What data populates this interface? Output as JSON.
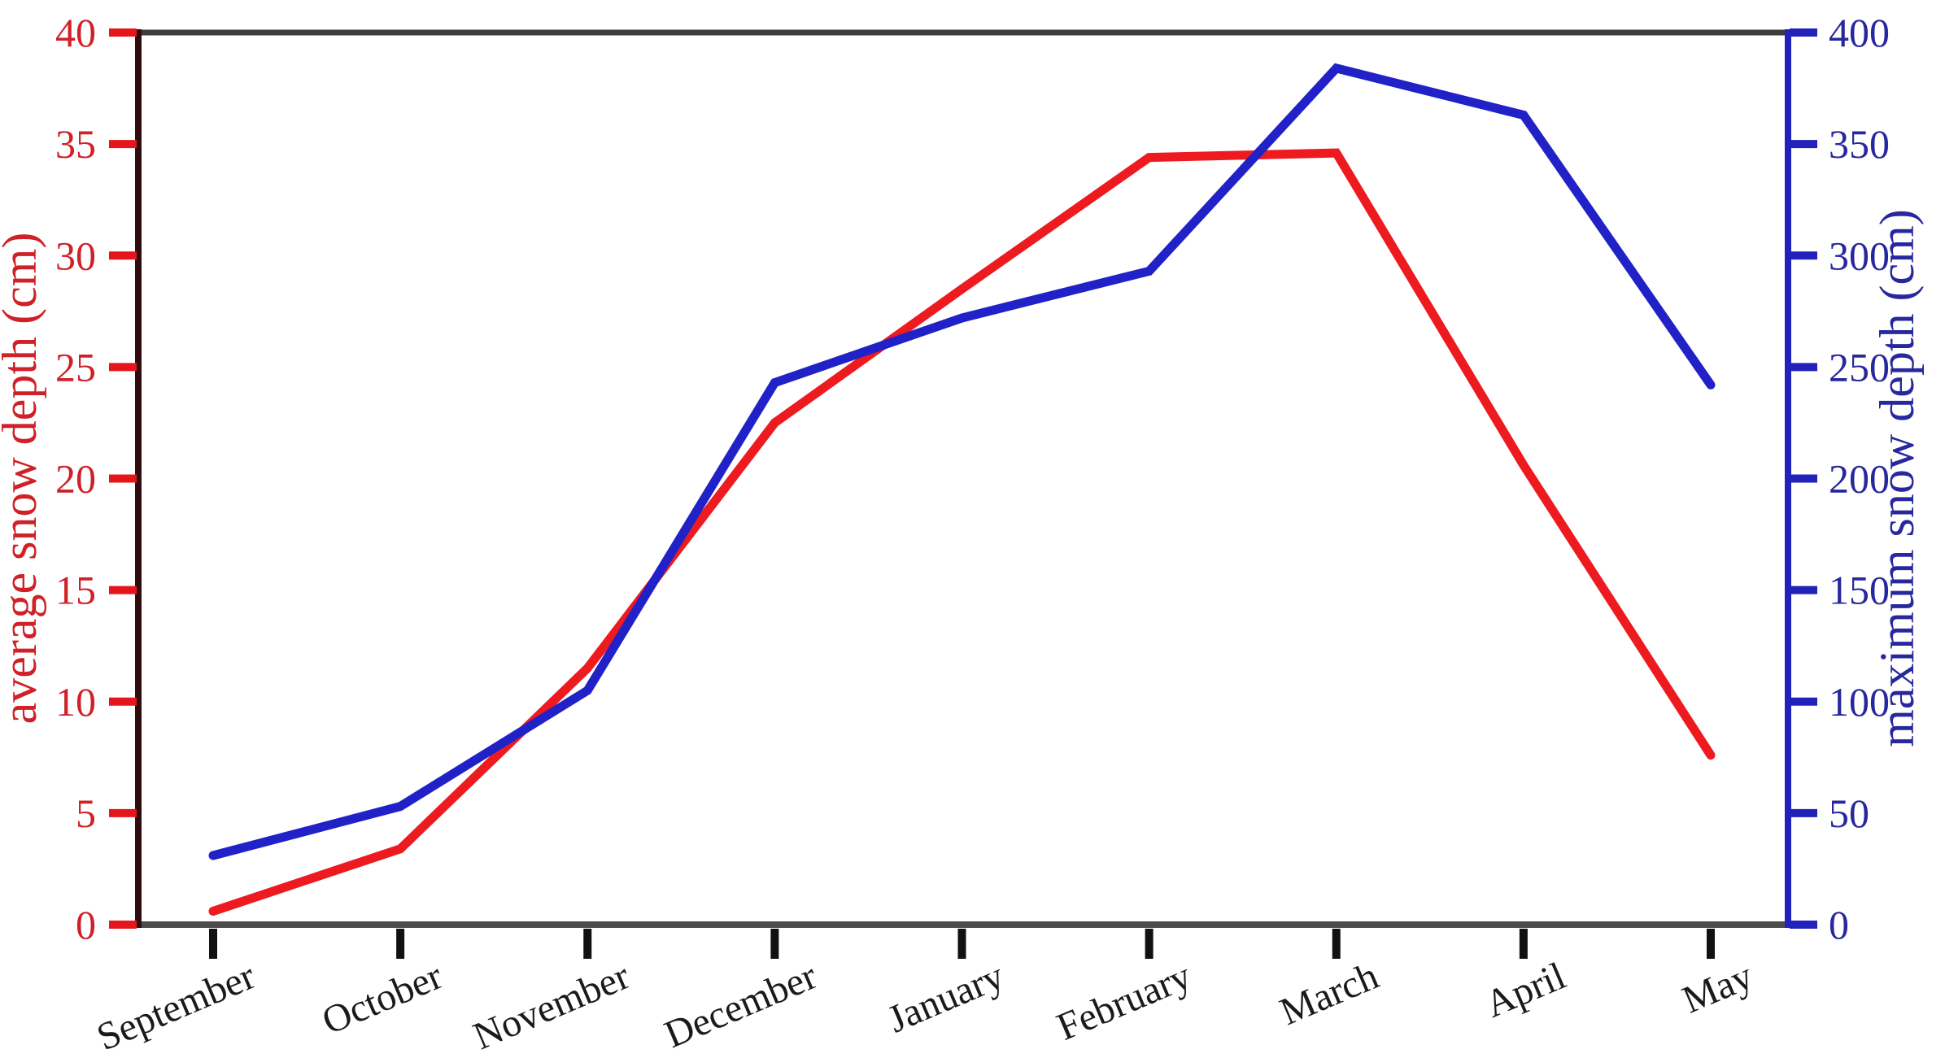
{
  "chart_data": {
    "type": "line",
    "categories": [
      "September",
      "October",
      "November",
      "December",
      "January",
      "February",
      "March",
      "April",
      "May"
    ],
    "series": [
      {
        "name": "average snow depth (cm)",
        "axis": "left",
        "color": "#ed1b1f",
        "values": [
          0.6,
          3.4,
          11.5,
          22.5,
          28.5,
          34.4,
          34.6,
          20.6,
          7.6
        ]
      },
      {
        "name": "maximum snow depth (cm)",
        "axis": "right",
        "color": "#2121c8",
        "values": [
          31,
          53,
          105,
          243,
          272,
          293,
          384,
          363,
          242
        ]
      }
    ],
    "left_axis": {
      "label": "average snow depth (cm)",
      "min": 0,
      "max": 40,
      "tick_step": 5,
      "tick_labels": [
        "0",
        "5",
        "10",
        "15",
        "20",
        "25",
        "30",
        "35",
        "40"
      ],
      "tick_color": "#e4161c",
      "text_color": "#cf2127",
      "spine_color": "#2f0c0e"
    },
    "right_axis": {
      "label": "maximum snow depth (cm)",
      "min": 0,
      "max": 400,
      "tick_step": 50,
      "tick_labels": [
        "0",
        "50",
        "100",
        "150",
        "200",
        "250",
        "300",
        "350",
        "400"
      ],
      "tick_color": "#2222bb",
      "text_color": "#28289e",
      "spine_color": "#2222bb"
    },
    "x_axis": {
      "tick_color": "#111111",
      "text_color": "#1a1a1a",
      "spine_color": "#4c4c4c"
    },
    "top_spine_color": "#3b3b3b",
    "grid": "off",
    "legend": "none",
    "title": ""
  }
}
